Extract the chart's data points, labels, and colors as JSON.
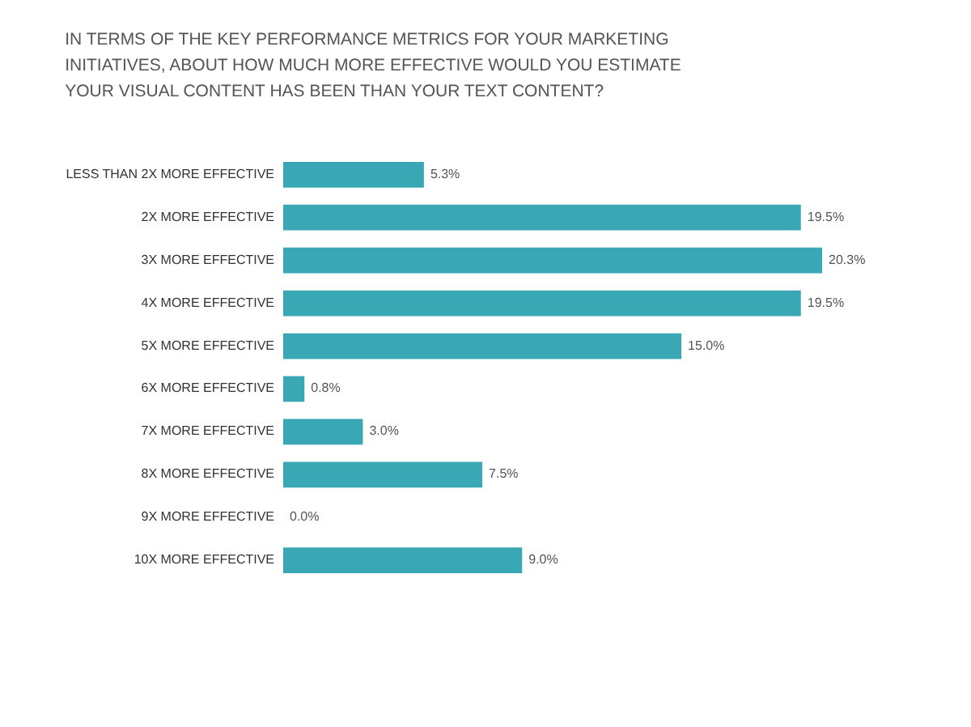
{
  "chart_data": {
    "type": "bar",
    "orientation": "horizontal",
    "title": "IN TERMS OF THE KEY PERFORMANCE METRICS FOR YOUR MARKETING\nINITIATIVES, ABOUT HOW MUCH MORE EFFECTIVE WOULD YOU ESTIMATE\nYOUR VISUAL CONTENT HAS BEEN THAN YOUR TEXT CONTENT?",
    "categories": [
      "LESS THAN 2X MORE EFFECTIVE",
      "2X MORE EFFECTIVE",
      "3X MORE EFFECTIVE",
      "4X MORE EFFECTIVE",
      "5X MORE EFFECTIVE",
      "6X MORE EFFECTIVE",
      "7X MORE EFFECTIVE",
      "8X MORE EFFECTIVE",
      "9X MORE EFFECTIVE",
      "10X MORE EFFECTIVE"
    ],
    "values": [
      5.3,
      19.5,
      20.3,
      19.5,
      15.0,
      0.8,
      3.0,
      7.5,
      0.0,
      9.0
    ],
    "value_labels": [
      "5.3%",
      "19.5%",
      "20.3%",
      "19.5%",
      "15.0%",
      "0.8%",
      "3.0%",
      "7.5%",
      "0.0%",
      "9.0%"
    ],
    "color": "#3aa8b4"
  }
}
